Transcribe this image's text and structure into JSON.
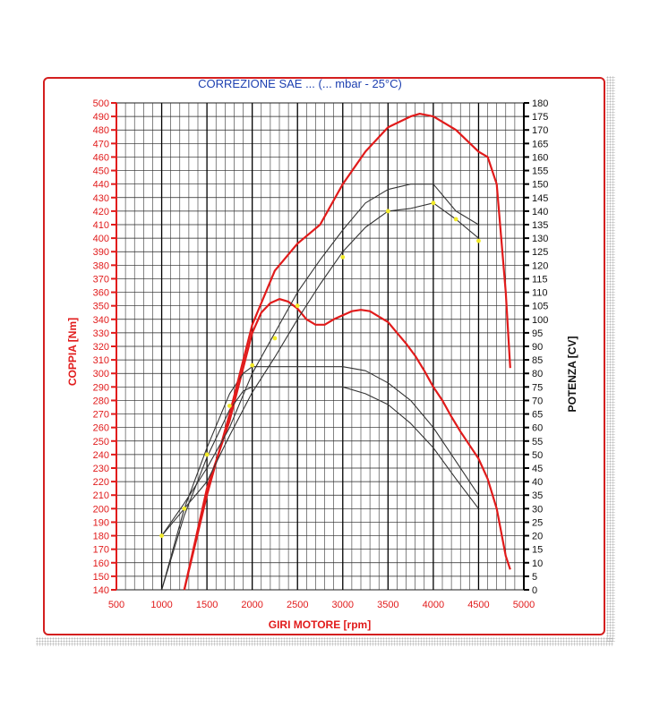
{
  "chart_data": {
    "type": "line",
    "title": "CORREZIONE SAE ... (... mbar - 25°C)",
    "xlabel": "GIRI MOTORE [rpm]",
    "ylabel_left": "COPPIA [Nm]",
    "ylabel_right": "POTENZA [CV]",
    "xlim": [
      500,
      5000
    ],
    "ylim_left": [
      140,
      500
    ],
    "ylim_right": [
      0,
      180
    ],
    "x_ticks": [
      "500",
      "1000",
      "1500",
      "2000",
      "2500",
      "3000",
      "3500",
      "4000",
      "4500",
      "5000"
    ],
    "y_left_ticks": [
      "140",
      "150",
      "160",
      "170",
      "180",
      "190",
      "200",
      "210",
      "220",
      "230",
      "240",
      "250",
      "260",
      "270",
      "280",
      "290",
      "300",
      "310",
      "320",
      "330",
      "340",
      "350",
      "360",
      "370",
      "380",
      "390",
      "400",
      "410",
      "420",
      "430",
      "440",
      "450",
      "460",
      "470",
      "480",
      "490",
      "500"
    ],
    "y_right_ticks": [
      "0",
      "5",
      "10",
      "15",
      "20",
      "25",
      "30",
      "35",
      "40",
      "45",
      "50",
      "55",
      "60",
      "65",
      "70",
      "75",
      "80",
      "85",
      "90",
      "95",
      "100",
      "105",
      "110",
      "115",
      "120",
      "125",
      "130",
      "135",
      "140",
      "145",
      "150",
      "155",
      "160",
      "165",
      "170",
      "175",
      "180"
    ],
    "grid": true,
    "colors": {
      "red": "#e11b1b",
      "black": "#333333",
      "marker": "#f2ea2a",
      "title": "#1c3fb0",
      "frame": "#d41f1f"
    },
    "series": [
      {
        "axis": "left",
        "color": "red",
        "x": [
          1250,
          1500,
          1750,
          2000,
          2100,
          2200,
          2300,
          2400,
          2500,
          2600,
          2700,
          2800,
          2900,
          3000,
          3100,
          3200,
          3300,
          3400,
          3500,
          3600,
          3700,
          3800,
          3900,
          4000,
          4100,
          4200,
          4300,
          4400,
          4500,
          4600,
          4700,
          4800,
          4850
        ],
        "y": [
          140,
          215,
          265,
          330,
          345,
          352,
          355,
          353,
          348,
          340,
          336,
          336,
          340,
          343,
          346,
          347,
          346,
          342,
          338,
          330,
          322,
          313,
          302,
          290,
          280,
          268,
          257,
          247,
          237,
          222,
          200,
          165,
          155
        ]
      },
      {
        "axis": "left",
        "color": "black",
        "x": [
          1000,
          1250,
          1500,
          1750,
          1900,
          2000,
          2250,
          2500,
          2750,
          3000,
          3250,
          3500,
          3750,
          4000,
          4250,
          4500
        ],
        "y": [
          140,
          200,
          245,
          285,
          300,
          305,
          305,
          305,
          305,
          305,
          302,
          293,
          280,
          260,
          235,
          210
        ]
      },
      {
        "axis": "left",
        "color": "black",
        "x": [
          1000,
          1250,
          1500,
          1750,
          1900,
          2000,
          2250,
          2500,
          2750,
          3000,
          3250,
          3500,
          3750,
          4000,
          4250,
          4500
        ],
        "y": [
          140,
          195,
          238,
          273,
          287,
          290,
          290,
          290,
          290,
          290,
          285,
          277,
          263,
          245,
          222,
          200
        ]
      },
      {
        "axis": "right",
        "color": "red",
        "x": [
          1250,
          1500,
          1750,
          2000,
          2250,
          2500,
          2750,
          3000,
          3250,
          3500,
          3750,
          3850,
          4000,
          4250,
          4500,
          4600,
          4700,
          4800,
          4850
        ],
        "y": [
          0,
          35,
          65,
          98,
          118,
          128,
          135,
          150,
          162,
          171,
          175,
          176,
          175,
          170,
          162,
          160,
          150,
          110,
          82
        ]
      },
      {
        "axis": "right",
        "color": "black",
        "x": [
          1000,
          1250,
          1500,
          1750,
          2000,
          2250,
          2500,
          2750,
          3000,
          3250,
          3500,
          3750,
          4000,
          4250,
          4500
        ],
        "y": [
          20,
          32,
          45,
          60,
          80,
          95,
          110,
          122,
          133,
          143,
          148,
          150,
          150,
          140,
          135
        ]
      },
      {
        "axis": "right",
        "color": "black",
        "x": [
          1000,
          1250,
          1500,
          1750,
          2000,
          2250,
          2500,
          2750,
          3000,
          3250,
          3500,
          3750,
          4000,
          4250,
          4500
        ],
        "y": [
          20,
          30,
          40,
          57,
          73,
          86,
          100,
          113,
          125,
          134,
          140,
          141,
          143,
          137,
          130
        ]
      },
      {
        "axis": "right",
        "color": "marker",
        "markers_only": true,
        "x": [
          1000,
          1250,
          1500,
          1750,
          2000,
          2250,
          2500,
          3000,
          3500,
          4000,
          4250,
          4500
        ],
        "y": [
          20,
          30,
          50,
          68,
          83,
          93,
          105,
          123,
          140,
          143,
          137,
          129
        ]
      }
    ]
  }
}
